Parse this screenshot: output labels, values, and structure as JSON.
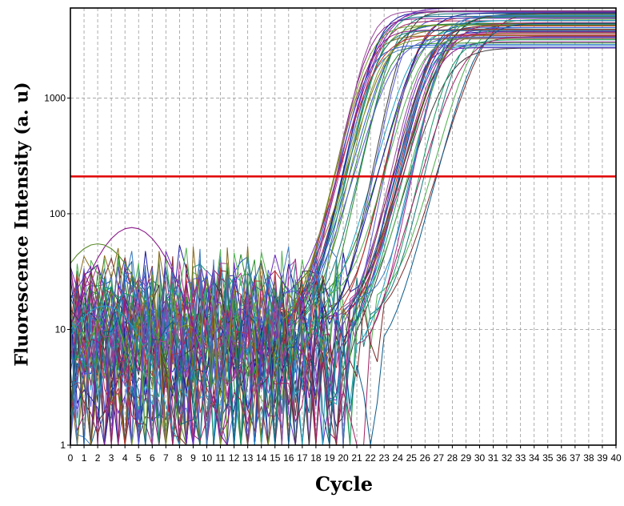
{
  "chart_data": {
    "type": "line",
    "title": "",
    "xlabel": "Cycle",
    "ylabel": "Fluorescence Intensity (a. u)",
    "yscale": "log",
    "xlim": [
      0,
      40
    ],
    "ylim": [
      1,
      6000
    ],
    "x_ticks": [
      "0",
      "1",
      "2",
      "3",
      "4",
      "5",
      "6",
      "7",
      "8",
      "9",
      "10",
      "11",
      "12",
      "13",
      "14",
      "15",
      "16",
      "17",
      "18",
      "19",
      "20",
      "21",
      "22",
      "23",
      "24",
      "25",
      "26",
      "27",
      "28",
      "29",
      "30",
      "31",
      "32",
      "33",
      "34",
      "35",
      "36",
      "37",
      "38",
      "39",
      "40"
    ],
    "y_ticks": [
      {
        "value": 1,
        "label": "1"
      },
      {
        "value": 10,
        "label": "10"
      },
      {
        "value": 100,
        "label": "100"
      },
      {
        "value": 1000,
        "label": "1000"
      }
    ],
    "grid": true,
    "threshold": {
      "value": 210,
      "color": "#e00000"
    },
    "series_count": 60,
    "series_summary": {
      "ct_range": [
        19.3,
        27.6
      ],
      "plateau_range": [
        2700,
        6100
      ],
      "baseline_range": [
        1,
        40
      ]
    },
    "early_humps": [
      {
        "color": "#8a1a8a",
        "peak_cycle": 4.5,
        "peak_value": 76
      },
      {
        "color": "#5a8a2a",
        "peak_cycle": 2.0,
        "peak_value": 55
      },
      {
        "color": "#22a0c8",
        "peak_cycle": 2.5,
        "peak_value": 16
      }
    ],
    "palette": [
      "#1a1aa0",
      "#8a1a8a",
      "#2a8a2a",
      "#1a7a7a",
      "#7a2a2a",
      "#2a5ad0",
      "#b03090",
      "#50b050",
      "#20a0c0",
      "#8a6a1a",
      "#3a3a3a",
      "#6a2ac0",
      "#c03030",
      "#1a9a6a",
      "#5a5ad0",
      "#a02060",
      "#3a7ac0",
      "#7a9a2a",
      "#0a5a8a",
      "#9a4a9a"
    ]
  }
}
